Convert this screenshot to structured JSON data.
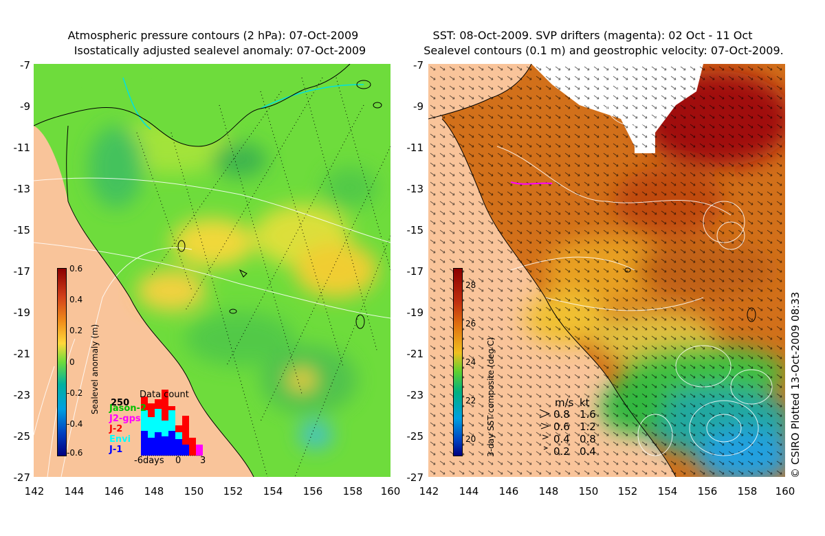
{
  "left_panel": {
    "title_line1": "Atmospheric pressure contours (2 hPa): 07-Oct-2009",
    "title_line2": "Isostatically adjusted sealevel anomaly: 07-Oct-2009",
    "y_ticks": [
      "-7",
      "-9",
      "-11",
      "-13",
      "-15",
      "-17",
      "-19",
      "-21",
      "-23",
      "-25",
      "-27"
    ],
    "x_ticks": [
      "142",
      "144",
      "146",
      "148",
      "150",
      "152",
      "154",
      "156",
      "158",
      "160"
    ],
    "colorbar": {
      "label": "Sealevel anomaly (m)",
      "ticks": [
        "0.6",
        "0.4",
        "0.2",
        "0",
        "-0.2",
        "-0.4",
        "-0.6"
      ]
    },
    "data_count": {
      "title": "Data count",
      "max_label": "250",
      "x_labels": [
        "-6days",
        "0",
        "3"
      ],
      "legend": [
        {
          "label": "Jason-2",
          "color": "#00c000"
        },
        {
          "label": "J2-gps",
          "color": "#ff00ff"
        },
        {
          "label": "J-2",
          "color": "#ff0000"
        },
        {
          "label": "Envi",
          "color": "#00ffff"
        },
        {
          "label": "J-1",
          "color": "#0000ff"
        }
      ]
    }
  },
  "right_panel": {
    "title_line1": "SST: 08-Oct-2009. SVP drifters (magenta): 02 Oct - 11 Oct",
    "title_line2": "Sealevel contours (0.1 m) and geostrophic velocity: 07-Oct-2009.",
    "y_ticks": [
      "-7",
      "-9",
      "-11",
      "-13",
      "-15",
      "-17",
      "-19",
      "-21",
      "-23",
      "-25",
      "-27"
    ],
    "x_ticks": [
      "142",
      "144",
      "146",
      "148",
      "150",
      "152",
      "154",
      "156",
      "158",
      "160"
    ],
    "colorbar": {
      "label": "3-day SST composite (deg C)",
      "ticks": [
        "28",
        "26",
        "24",
        "22",
        "20"
      ]
    },
    "velocity_legend": {
      "header_ms": "m/s",
      "header_kt": "kt",
      "rows": [
        {
          "ms": "0.8",
          "kt": "1.6"
        },
        {
          "ms": "0.6",
          "kt": "1.2"
        },
        {
          "ms": "0.4",
          "kt": "0.8"
        },
        {
          "ms": "0.2",
          "kt": "0.4"
        }
      ]
    }
  },
  "credit": "© CSIRO Plotted 13-Oct-2009 08:33",
  "colors": {
    "land": "#f9c49a",
    "sla_green": "#5fd13a",
    "sst_orange": "#d2701a"
  }
}
